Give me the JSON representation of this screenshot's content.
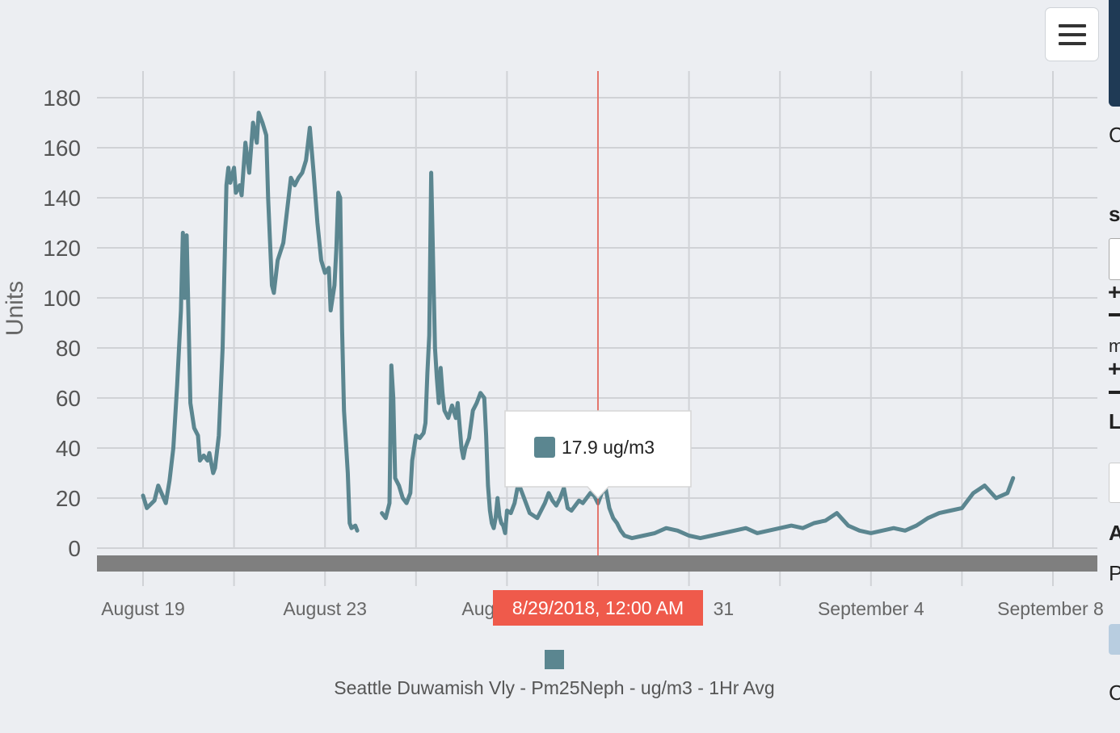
{
  "chart_data": {
    "type": "line",
    "ylabel": "Units",
    "ylim": [
      0,
      180
    ],
    "y_ticks": [
      "180",
      "160",
      "140",
      "120",
      "100",
      "80",
      "60",
      "40",
      "20",
      "0"
    ],
    "y_tick_values": [
      180,
      160,
      140,
      120,
      100,
      80,
      60,
      40,
      20,
      0
    ],
    "x_start": "2018-08-19",
    "x_end": "2018-09-08",
    "x_tick_labels": [
      {
        "date": "2018-08-19",
        "label": "August 19"
      },
      {
        "date": "2018-08-23",
        "label": "August 23"
      },
      {
        "date": "2018-08-27",
        "label": "Aug"
      },
      {
        "date": "2018-08-31",
        "label": "31"
      },
      {
        "date": "2018-09-04",
        "label": "September 4"
      },
      {
        "date": "2018-09-08",
        "label": "September 8"
      }
    ],
    "grid": true,
    "legend_position": "bottom",
    "series": [
      {
        "name": "Seattle Duwamish Vly - Pm25Neph - ug/m3 - 1Hr Avg",
        "color": "#5b8690",
        "points": [
          [
            "2018-08-19 00:00",
            21
          ],
          [
            "2018-08-19 02:00",
            16
          ],
          [
            "2018-08-19 06:00",
            19
          ],
          [
            "2018-08-19 08:00",
            25
          ],
          [
            "2018-08-19 12:00",
            18
          ],
          [
            "2018-08-19 14:00",
            27
          ],
          [
            "2018-08-19 16:00",
            40
          ],
          [
            "2018-08-19 18:00",
            65
          ],
          [
            "2018-08-19 20:00",
            95
          ],
          [
            "2018-08-19 21:00",
            126
          ],
          [
            "2018-08-19 22:00",
            100
          ],
          [
            "2018-08-19 23:00",
            125
          ],
          [
            "2018-08-20 01:00",
            58
          ],
          [
            "2018-08-20 03:00",
            48
          ],
          [
            "2018-08-20 05:00",
            45
          ],
          [
            "2018-08-20 06:00",
            35
          ],
          [
            "2018-08-20 08:00",
            37
          ],
          [
            "2018-08-20 10:00",
            35
          ],
          [
            "2018-08-20 11:00",
            38
          ],
          [
            "2018-08-20 12:00",
            34
          ],
          [
            "2018-08-20 13:00",
            30
          ],
          [
            "2018-08-20 14:00",
            32
          ],
          [
            "2018-08-20 16:00",
            45
          ],
          [
            "2018-08-20 18:00",
            80
          ],
          [
            "2018-08-20 20:00",
            145
          ],
          [
            "2018-08-20 21:00",
            152
          ],
          [
            "2018-08-20 22:00",
            146
          ],
          [
            "2018-08-21 00:00",
            152
          ],
          [
            "2018-08-21 01:00",
            142
          ],
          [
            "2018-08-21 03:00",
            145
          ],
          [
            "2018-08-21 04:00",
            141
          ],
          [
            "2018-08-21 06:00",
            162
          ],
          [
            "2018-08-21 08:00",
            150
          ],
          [
            "2018-08-21 10:00",
            170
          ],
          [
            "2018-08-21 12:00",
            162
          ],
          [
            "2018-08-21 13:00",
            174
          ],
          [
            "2018-08-21 15:00",
            170
          ],
          [
            "2018-08-21 17:00",
            165
          ],
          [
            "2018-08-21 18:00",
            140
          ],
          [
            "2018-08-21 20:00",
            105
          ],
          [
            "2018-08-21 21:00",
            102
          ],
          [
            "2018-08-21 23:00",
            115
          ],
          [
            "2018-08-22 02:00",
            122
          ],
          [
            "2018-08-22 04:00",
            135
          ],
          [
            "2018-08-22 06:00",
            148
          ],
          [
            "2018-08-22 08:00",
            145
          ],
          [
            "2018-08-22 10:00",
            148
          ],
          [
            "2018-08-22 12:00",
            150
          ],
          [
            "2018-08-22 14:00",
            155
          ],
          [
            "2018-08-22 16:00",
            168
          ],
          [
            "2018-08-22 18:00",
            150
          ],
          [
            "2018-08-22 20:00",
            130
          ],
          [
            "2018-08-22 22:00",
            115
          ],
          [
            "2018-08-23 00:00",
            110
          ],
          [
            "2018-08-23 02:00",
            112
          ],
          [
            "2018-08-23 03:00",
            95
          ],
          [
            "2018-08-23 05:00",
            105
          ],
          [
            "2018-08-23 06:00",
            120
          ],
          [
            "2018-08-23 07:00",
            142
          ],
          [
            "2018-08-23 08:00",
            140
          ],
          [
            "2018-08-23 09:00",
            88
          ],
          [
            "2018-08-23 10:00",
            55
          ],
          [
            "2018-08-23 12:00",
            30
          ],
          [
            "2018-08-23 13:00",
            10
          ],
          [
            "2018-08-23 14:00",
            8
          ],
          [
            "2018-08-23 16:00",
            9
          ],
          [
            "2018-08-23 17:00",
            7
          ],
          [
            "2018-08-24 06:00",
            14
          ],
          [
            "2018-08-24 08:00",
            12
          ],
          [
            "2018-08-24 10:00",
            18
          ],
          [
            "2018-08-24 11:00",
            73
          ],
          [
            "2018-08-24 12:00",
            60
          ],
          [
            "2018-08-24 13:00",
            28
          ],
          [
            "2018-08-24 15:00",
            25
          ],
          [
            "2018-08-24 17:00",
            20
          ],
          [
            "2018-08-24 19:00",
            18
          ],
          [
            "2018-08-24 21:00",
            22
          ],
          [
            "2018-08-24 22:00",
            35
          ],
          [
            "2018-08-25 00:00",
            45
          ],
          [
            "2018-08-25 02:00",
            44
          ],
          [
            "2018-08-25 04:00",
            46
          ],
          [
            "2018-08-25 05:00",
            50
          ],
          [
            "2018-08-25 06:00",
            70
          ],
          [
            "2018-08-25 07:00",
            85
          ],
          [
            "2018-08-25 08:00",
            150
          ],
          [
            "2018-08-25 10:00",
            80
          ],
          [
            "2018-08-25 11:00",
            68
          ],
          [
            "2018-08-25 12:00",
            58
          ],
          [
            "2018-08-25 13:00",
            72
          ],
          [
            "2018-08-25 14:00",
            62
          ],
          [
            "2018-08-25 15:00",
            55
          ],
          [
            "2018-08-25 17:00",
            52
          ],
          [
            "2018-08-25 19:00",
            57
          ],
          [
            "2018-08-25 21:00",
            52
          ],
          [
            "2018-08-25 22:00",
            58
          ],
          [
            "2018-08-26 00:00",
            40
          ],
          [
            "2018-08-26 01:00",
            36
          ],
          [
            "2018-08-26 02:00",
            40
          ],
          [
            "2018-08-26 04:00",
            44
          ],
          [
            "2018-08-26 06:00",
            55
          ],
          [
            "2018-08-26 08:00",
            58
          ],
          [
            "2018-08-26 10:00",
            62
          ],
          [
            "2018-08-26 12:00",
            60
          ],
          [
            "2018-08-26 13:00",
            45
          ],
          [
            "2018-08-26 14:00",
            25
          ],
          [
            "2018-08-26 15:00",
            15
          ],
          [
            "2018-08-26 16:00",
            10
          ],
          [
            "2018-08-26 17:00",
            8
          ],
          [
            "2018-08-26 18:00",
            12
          ],
          [
            "2018-08-26 19:00",
            20
          ],
          [
            "2018-08-26 20:00",
            13
          ],
          [
            "2018-08-26 21:00",
            10
          ],
          [
            "2018-08-26 22:00",
            9
          ],
          [
            "2018-08-26 23:00",
            6
          ],
          [
            "2018-08-27 00:00",
            15
          ],
          [
            "2018-08-27 02:00",
            14
          ],
          [
            "2018-08-27 04:00",
            18
          ],
          [
            "2018-08-27 06:00",
            26
          ],
          [
            "2018-08-27 08:00",
            22
          ],
          [
            "2018-08-27 10:00",
            18
          ],
          [
            "2018-08-27 12:00",
            14
          ],
          [
            "2018-08-27 14:00",
            13
          ],
          [
            "2018-08-27 16:00",
            12
          ],
          [
            "2018-08-27 18:00",
            15
          ],
          [
            "2018-08-27 20:00",
            18
          ],
          [
            "2018-08-27 22:00",
            22
          ],
          [
            "2018-08-28 00:00",
            19
          ],
          [
            "2018-08-28 02:00",
            17
          ],
          [
            "2018-08-28 04:00",
            20
          ],
          [
            "2018-08-28 06:00",
            24
          ],
          [
            "2018-08-28 08:00",
            16
          ],
          [
            "2018-08-28 10:00",
            15
          ],
          [
            "2018-08-28 12:00",
            17
          ],
          [
            "2018-08-28 14:00",
            19
          ],
          [
            "2018-08-28 16:00",
            18
          ],
          [
            "2018-08-28 18:00",
            20
          ],
          [
            "2018-08-28 20:00",
            22
          ],
          [
            "2018-08-28 22:00",
            21
          ],
          [
            "2018-08-29 00:00",
            17.9
          ],
          [
            "2018-08-29 02:00",
            22
          ],
          [
            "2018-08-29 04:00",
            24
          ],
          [
            "2018-08-29 06:00",
            16
          ],
          [
            "2018-08-29 08:00",
            12
          ],
          [
            "2018-08-29 10:00",
            10
          ],
          [
            "2018-08-29 12:00",
            7
          ],
          [
            "2018-08-29 14:00",
            5
          ],
          [
            "2018-08-29 18:00",
            4
          ],
          [
            "2018-08-30 00:00",
            5
          ],
          [
            "2018-08-30 06:00",
            6
          ],
          [
            "2018-08-30 12:00",
            8
          ],
          [
            "2018-08-30 18:00",
            7
          ],
          [
            "2018-08-31 00:00",
            5
          ],
          [
            "2018-08-31 06:00",
            4
          ],
          [
            "2018-08-31 12:00",
            5
          ],
          [
            "2018-08-31 18:00",
            6
          ],
          [
            "2018-09-01 00:00",
            7
          ],
          [
            "2018-09-01 06:00",
            8
          ],
          [
            "2018-09-01 12:00",
            6
          ],
          [
            "2018-09-01 18:00",
            7
          ],
          [
            "2018-09-02 00:00",
            8
          ],
          [
            "2018-09-02 06:00",
            9
          ],
          [
            "2018-09-02 12:00",
            8
          ],
          [
            "2018-09-02 18:00",
            10
          ],
          [
            "2018-09-03 00:00",
            11
          ],
          [
            "2018-09-03 06:00",
            14
          ],
          [
            "2018-09-03 12:00",
            9
          ],
          [
            "2018-09-03 18:00",
            7
          ],
          [
            "2018-09-04 00:00",
            6
          ],
          [
            "2018-09-04 06:00",
            7
          ],
          [
            "2018-09-04 12:00",
            8
          ],
          [
            "2018-09-04 18:00",
            7
          ],
          [
            "2018-09-05 00:00",
            9
          ],
          [
            "2018-09-05 06:00",
            12
          ],
          [
            "2018-09-05 12:00",
            14
          ],
          [
            "2018-09-05 18:00",
            15
          ],
          [
            "2018-09-06 00:00",
            16
          ],
          [
            "2018-09-06 06:00",
            22
          ],
          [
            "2018-09-06 12:00",
            25
          ],
          [
            "2018-09-06 18:00",
            20
          ],
          [
            "2018-09-07 00:00",
            22
          ],
          [
            "2018-09-07 03:00",
            28
          ]
        ]
      }
    ]
  },
  "tooltip": {
    "value_label": "17.9 ug/m3",
    "date_label": "8/29/2018, 12:00 AM",
    "date": "2018-08-29 00:00",
    "y_value": 17.9
  },
  "colors": {
    "background": "#eceef2",
    "gridline": "#d0d2d6",
    "series": "#5b8690",
    "crosshair": "#e9574a",
    "date_badge": "#ef5a4b",
    "range_bar": "#7f7f7f",
    "side_header": "#1f3a55"
  },
  "icons": {
    "menu": "hamburger-menu-icon",
    "side_plus": "plus-icon",
    "side_minus": "minus-icon"
  },
  "side_panel": {
    "letters": [
      "C",
      "s",
      "m",
      "L",
      "A",
      "P",
      "C"
    ]
  }
}
